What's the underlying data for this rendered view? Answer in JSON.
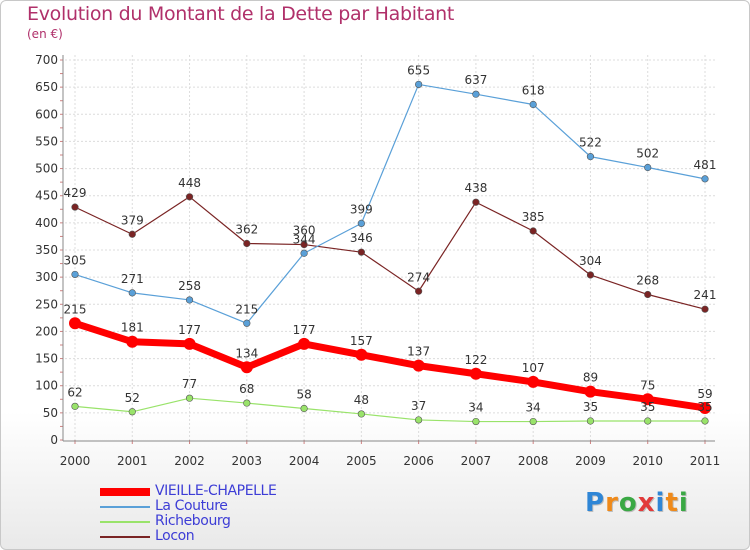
{
  "chart_data": {
    "type": "line",
    "title": "Evolution du Montant de la Dette par Habitant",
    "subtitle": "(en €)",
    "xlabel": "",
    "ylabel": "",
    "categories": [
      "2000",
      "2001",
      "2002",
      "2003",
      "2004",
      "2005",
      "2006",
      "2007",
      "2008",
      "2009",
      "2010",
      "2011"
    ],
    "ylim": [
      0,
      700
    ],
    "yticks": [
      0,
      50,
      100,
      150,
      200,
      250,
      300,
      350,
      400,
      450,
      500,
      550,
      600,
      650,
      700
    ],
    "grid": true,
    "legend_position": "bottom-left",
    "series": [
      {
        "name": "VIEILLE-CHAPELLE",
        "color": "#ff0000",
        "values": [
          215,
          181,
          177,
          134,
          177,
          157,
          137,
          122,
          107,
          89,
          75,
          59
        ]
      },
      {
        "name": "La Couture",
        "color": "#5aa0d8",
        "values": [
          305,
          271,
          258,
          215,
          344,
          399,
          655,
          637,
          618,
          522,
          502,
          481
        ]
      },
      {
        "name": "Richebourg",
        "color": "#99e36a",
        "values": [
          62,
          52,
          77,
          68,
          58,
          48,
          37,
          34,
          34,
          35,
          35,
          35
        ]
      },
      {
        "name": "Locon",
        "color": "#7a2424",
        "values": [
          429,
          379,
          448,
          362,
          360,
          346,
          274,
          438,
          385,
          304,
          268,
          241
        ]
      }
    ]
  },
  "brand": {
    "letters": [
      "P",
      "r",
      "o",
      "x",
      "i",
      "t",
      "i"
    ],
    "colors": [
      "#2f86d6",
      "#ef8a1a",
      "#3aa844",
      "#e23a3a",
      "#2f86d6",
      "#ef8a1a",
      "#3aa844"
    ]
  }
}
